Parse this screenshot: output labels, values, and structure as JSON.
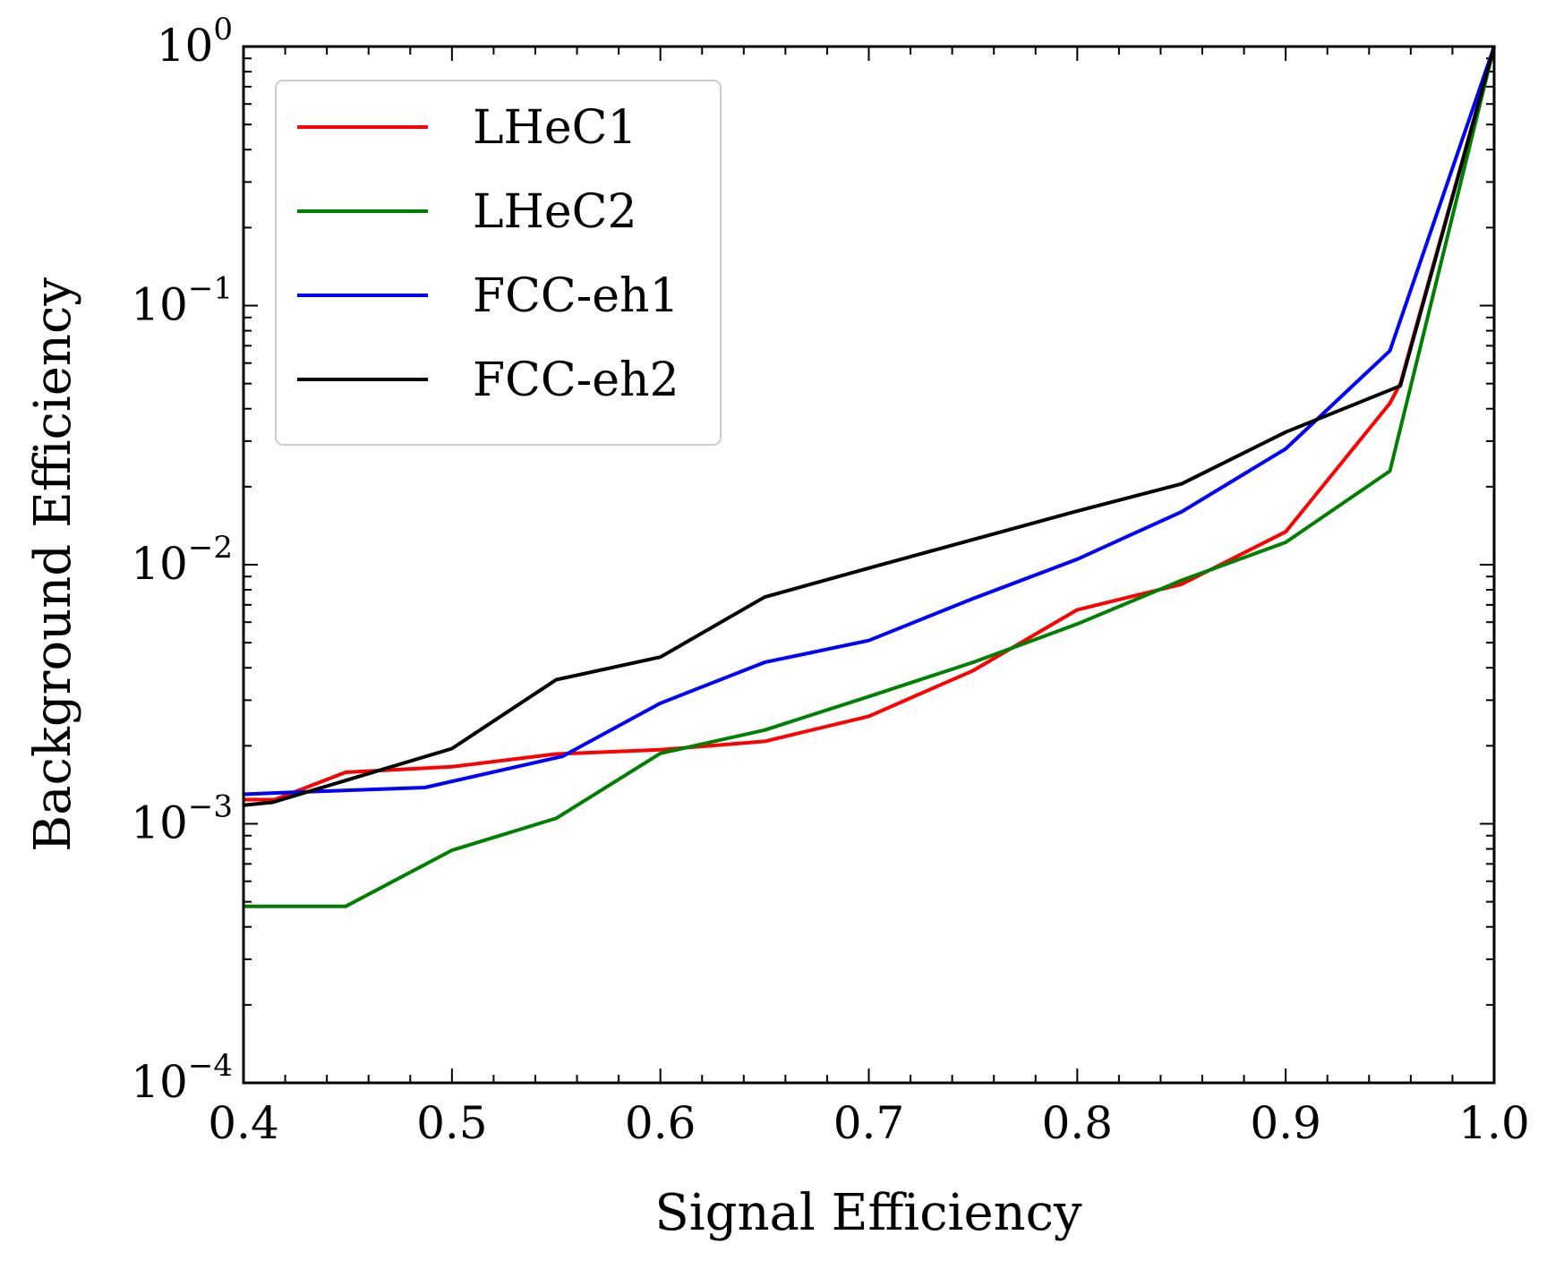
{
  "chart_data": {
    "type": "line",
    "title": "",
    "xlabel": "Signal Efficiency",
    "ylabel": "Background Efficiency",
    "xlim": [
      0.4,
      1.0
    ],
    "ylim": [
      0.0001,
      1
    ],
    "yscale": "log",
    "x_ticks": [
      0.4,
      0.5,
      0.6,
      0.7,
      0.8,
      0.9,
      1.0
    ],
    "x_tick_labels": [
      "0.4",
      "0.5",
      "0.6",
      "0.7",
      "0.8",
      "0.9",
      "1.0"
    ],
    "y_ticks": [
      0.0001,
      0.001,
      0.01,
      0.1,
      1
    ],
    "y_tick_labels": [
      {
        "base": "10",
        "exp": "−4"
      },
      {
        "base": "10",
        "exp": "−3"
      },
      {
        "base": "10",
        "exp": "−2"
      },
      {
        "base": "10",
        "exp": "−1"
      },
      {
        "base": "10",
        "exp": "0"
      }
    ],
    "grid": false,
    "legend_position": "top-left",
    "series": [
      {
        "name": "LHeC1",
        "color": "#ff0000",
        "x": [
          0.4,
          0.415,
          0.449,
          0.5,
          0.55,
          0.6,
          0.65,
          0.7,
          0.75,
          0.8,
          0.85,
          0.9,
          0.95,
          0.955,
          1.0
        ],
        "y": [
          0.00124,
          0.00124,
          0.00158,
          0.00166,
          0.00186,
          0.00193,
          0.00208,
          0.0026,
          0.0039,
          0.0067,
          0.0084,
          0.0134,
          0.042,
          0.05,
          1.0
        ]
      },
      {
        "name": "LHeC2",
        "color": "#008000",
        "x": [
          0.4,
          0.449,
          0.5,
          0.55,
          0.6,
          0.65,
          0.7,
          0.75,
          0.8,
          0.85,
          0.9,
          0.95,
          1.0
        ],
        "y": [
          0.00048,
          0.00048,
          0.00079,
          0.00105,
          0.00187,
          0.0023,
          0.0031,
          0.0042,
          0.0059,
          0.0087,
          0.0122,
          0.023,
          1.0
        ]
      },
      {
        "name": "FCC-eh1",
        "color": "#0000ff",
        "x": [
          0.4,
          0.42,
          0.487,
          0.553,
          0.6,
          0.65,
          0.7,
          0.75,
          0.8,
          0.85,
          0.9,
          0.95,
          1.0
        ],
        "y": [
          0.0013,
          0.00132,
          0.00138,
          0.00182,
          0.00292,
          0.0042,
          0.0051,
          0.0074,
          0.0105,
          0.016,
          0.028,
          0.067,
          1.0
        ]
      },
      {
        "name": "FCC-eh2",
        "color": "#000000",
        "x": [
          0.4,
          0.414,
          0.5,
          0.55,
          0.6,
          0.65,
          0.7,
          0.75,
          0.8,
          0.85,
          0.9,
          0.955,
          1.0
        ],
        "y": [
          0.00118,
          0.00121,
          0.00195,
          0.0036,
          0.0044,
          0.0075,
          0.0097,
          0.0125,
          0.0161,
          0.0205,
          0.0325,
          0.049,
          1.0
        ]
      }
    ]
  }
}
